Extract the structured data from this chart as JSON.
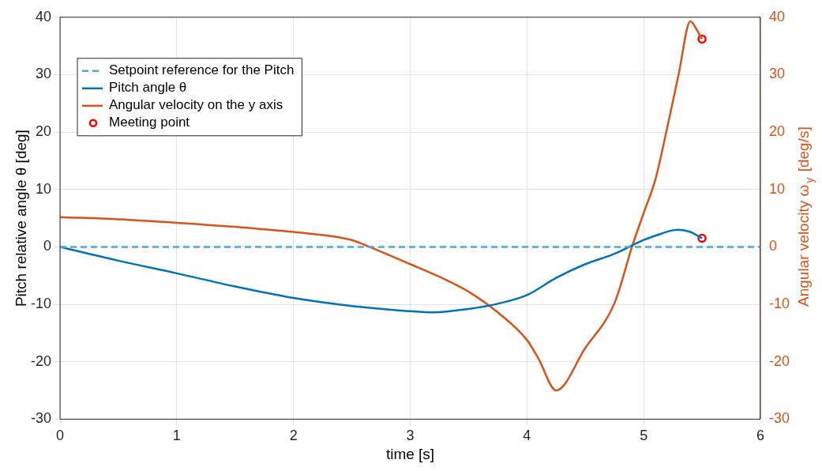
{
  "chart_data": {
    "type": "line",
    "xlabel": "time [s]",
    "ylabel": "Pitch relative angle θ [deg]",
    "y2label": "Angular velocity ω$_{y}$ [deg/s]",
    "xlim": [
      0,
      6
    ],
    "xticks": [
      0,
      1,
      2,
      3,
      4,
      5,
      6
    ],
    "ylim": [
      -30,
      40
    ],
    "yticks": [
      -30,
      -20,
      -10,
      0,
      10,
      20,
      30,
      40
    ],
    "y2lim": [
      -30,
      40
    ],
    "y2ticks": [
      -30,
      -20,
      -10,
      0,
      10,
      20,
      30,
      40
    ],
    "grid": true,
    "legend": "top left",
    "series": [
      {
        "name": "Setpoint reference for the Pitch",
        "type": "line",
        "color": "#4da6e0",
        "line_style": "dashed",
        "marker": "none",
        "x": [
          0,
          6
        ],
        "values": [
          0,
          0
        ]
      },
      {
        "name": "Pitch angle θ",
        "type": "line",
        "color": "#0072bd",
        "line_style": "solid",
        "marker": "none",
        "x": [
          0,
          0.5,
          1,
          1.5,
          2,
          2.5,
          3,
          3.2,
          3.5,
          3.75,
          4,
          4.25,
          4.5,
          4.75,
          5,
          5.15,
          5.25,
          5.3,
          5.4,
          5.5
        ],
        "values": [
          0,
          -2.4,
          -4.6,
          -6.9,
          -8.9,
          -10.3,
          -11.2,
          -11.4,
          -10.8,
          -9.9,
          -8.4,
          -5.4,
          -3,
          -1.2,
          1.2,
          2.3,
          2.9,
          3,
          2.6,
          1.5
        ]
      },
      {
        "name": "Angular velocity on the y axis",
        "type": "line",
        "color": "#d95319",
        "line_style": "solid",
        "marker": "none",
        "axis": "y2",
        "x": [
          0,
          0.5,
          1,
          1.5,
          2,
          2.5,
          2.65,
          3,
          3.25,
          3.5,
          3.75,
          4,
          4.1,
          4.25,
          4.5,
          4.75,
          4.9,
          5,
          5.1,
          5.2,
          5.3,
          5.4,
          5.42,
          5.45,
          5.5
        ],
        "values": [
          5.2,
          4.8,
          4.2,
          3.5,
          2.6,
          1.2,
          0,
          -3,
          -5.2,
          -7.8,
          -11.4,
          -16.2,
          -19.5,
          -25,
          -17.6,
          -9.8,
          0,
          5.9,
          11.7,
          20.6,
          30.1,
          39.3,
          39,
          38,
          36.2
        ]
      },
      {
        "name": "Meeting point",
        "type": "scatter",
        "color": "#ff0000",
        "marker": "circle",
        "x": [
          5.5,
          5.5
        ],
        "values": [
          1.5,
          36.2
        ]
      }
    ]
  }
}
